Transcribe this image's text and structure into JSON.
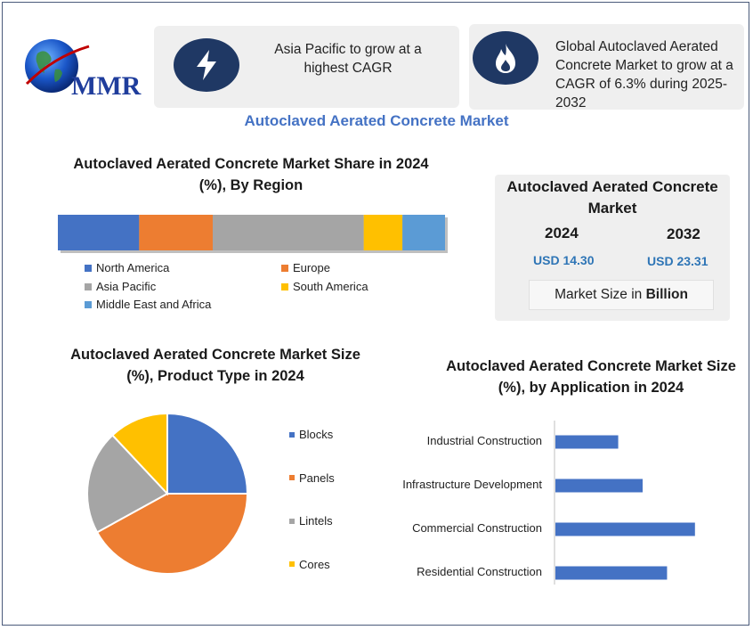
{
  "logo": {
    "text": "MMR"
  },
  "cards": [
    {
      "icon": "lightning-icon",
      "text": "Asia Pacific to grow at a highest CAGR"
    },
    {
      "icon": "flame-icon",
      "text": "Global Autoclaved Aerated Concrete Market to grow at a CAGR of 6.3% during 2025-2032"
    }
  ],
  "main_title": "Autoclaved Aerated Concrete Market",
  "stat_box": {
    "title": "Autoclaved Aerated Concrete Market",
    "year1": "2024",
    "year2": "2032",
    "value1": "USD 14.30",
    "value2": "USD 23.31",
    "unit_prefix": "Market Size in ",
    "unit_bold": "Billion"
  },
  "colors": {
    "north_america": "#4472c4",
    "europe": "#ed7d31",
    "asia_pacific": "#a5a5a5",
    "south_america": "#ffc000",
    "mea": "#5b9bd5",
    "accent": "#1f3864",
    "title_blue": "#4472c4"
  },
  "chart_data": [
    {
      "type": "bar",
      "orientation": "horizontal-stacked",
      "title": "Autoclaved Aerated Concrete Market Share in 2024 (%), By Region",
      "series": [
        {
          "name": "North America",
          "values": [
            21
          ]
        },
        {
          "name": "Europe",
          "values": [
            19
          ]
        },
        {
          "name": "Asia Pacific",
          "values": [
            39
          ]
        },
        {
          "name": "South America",
          "values": [
            10
          ]
        },
        {
          "name": "Middle East and Africa",
          "values": [
            11
          ]
        }
      ],
      "ylim": [
        0,
        100
      ]
    },
    {
      "type": "pie",
      "title": "Autoclaved Aerated Concrete Market Size (%), Product Type in 2024",
      "categories": [
        "Blocks",
        "Panels",
        "Lintels",
        "Cores"
      ],
      "values": [
        25,
        42,
        21,
        12
      ],
      "colors": [
        "#4472c4",
        "#ed7d31",
        "#a5a5a5",
        "#ffc000"
      ],
      "legend": "right"
    },
    {
      "type": "bar",
      "orientation": "horizontal",
      "title": "Autoclaved Aerated Concrete Market Size (%), by Application in 2024",
      "categories": [
        "Industrial Construction",
        "Infrastructure Development",
        "Commercial Construction",
        "Residential Construction"
      ],
      "values": [
        18,
        25,
        40,
        32
      ],
      "color": "#4472c4",
      "xlim": [
        0,
        50
      ]
    }
  ]
}
